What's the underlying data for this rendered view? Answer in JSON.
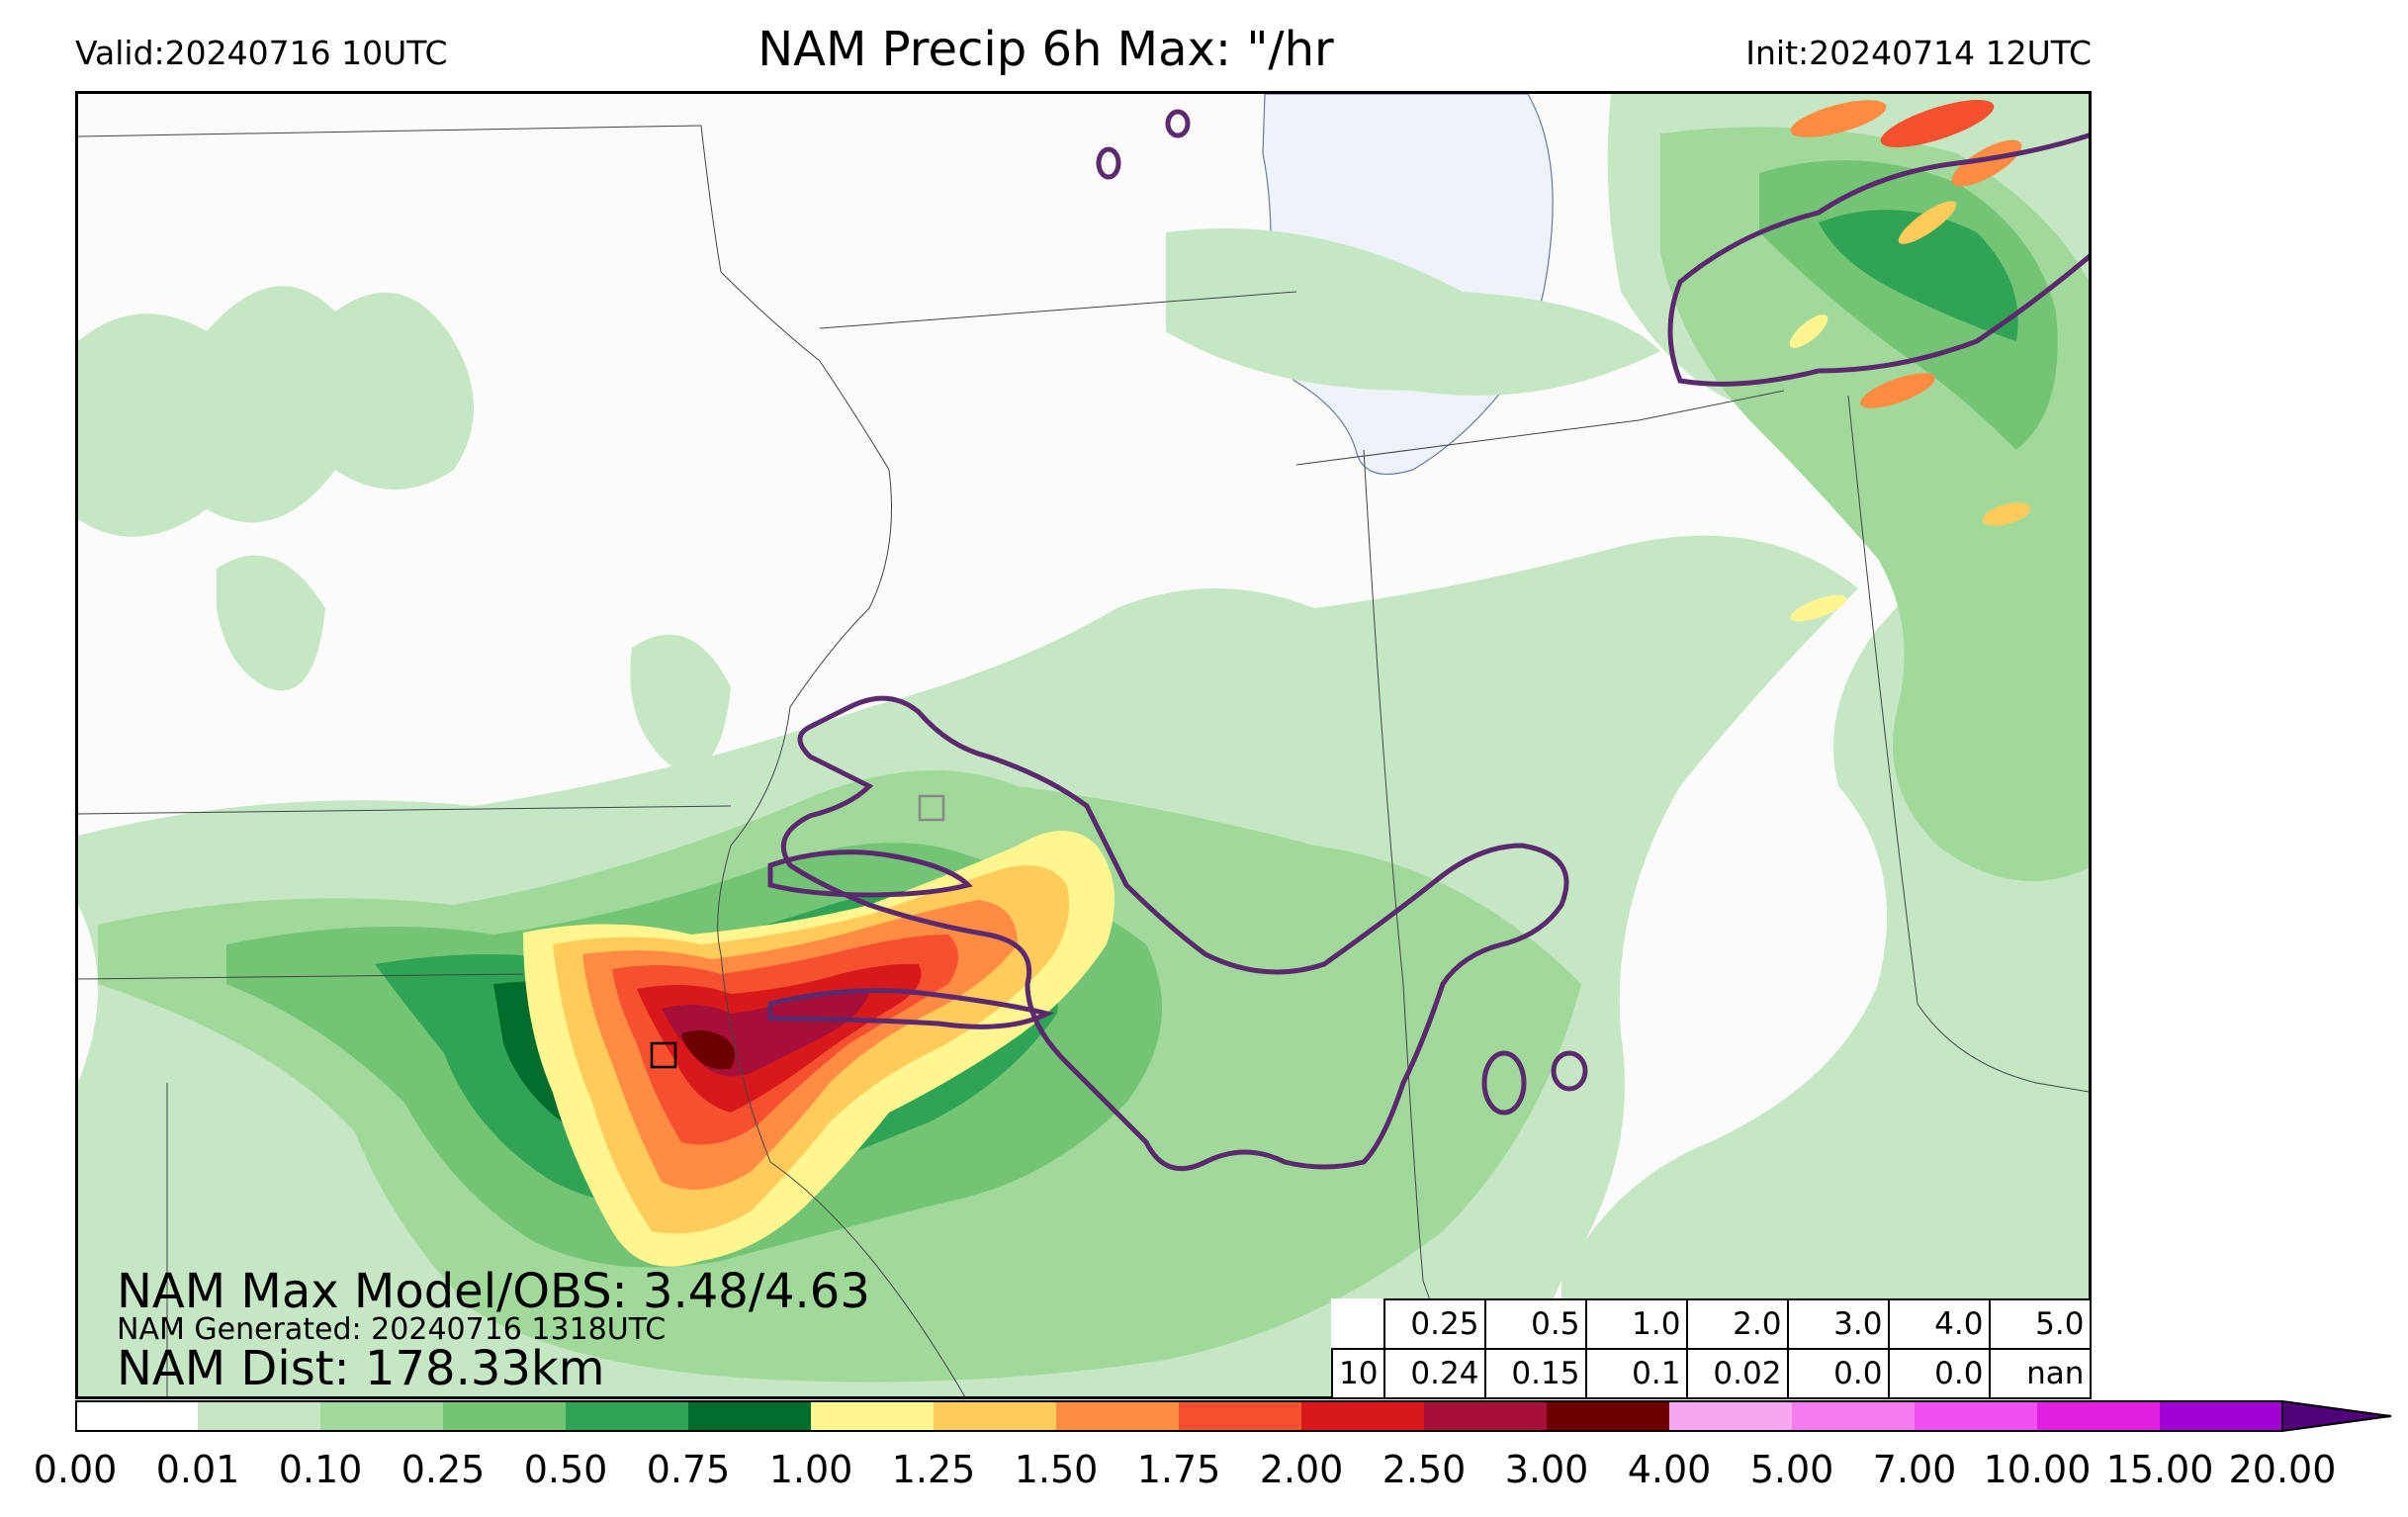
{
  "header": {
    "title": "NAM Precip 6h Max: \"/hr",
    "valid": "Valid:20240716 10UTC",
    "init": "Init:20240714 12UTC"
  },
  "stats": {
    "max_line": "NAM Max Model/OBS: 3.48/4.63",
    "generated_line": "NAM Generated: 20240716 1318UTC",
    "dist_line": "NAM Dist: 178.33km"
  },
  "threshold_table": {
    "thresholds": [
      "0.25",
      "0.5",
      "1.0",
      "2.0",
      "3.0",
      "4.0",
      "5.0"
    ],
    "row_label": "10",
    "values": [
      "0.24",
      "0.15",
      "0.1",
      "0.02",
      "0.0",
      "0.0",
      "nan"
    ]
  },
  "colorbar": {
    "ticks": [
      "0.00",
      "0.01",
      "0.10",
      "0.25",
      "0.50",
      "0.75",
      "1.00",
      "1.25",
      "1.50",
      "1.75",
      "2.00",
      "2.50",
      "3.00",
      "4.00",
      "5.00",
      "7.00",
      "10.00",
      "15.00",
      "20.00"
    ],
    "colors": [
      "#ffffff",
      "#c6e7c4",
      "#a1d99b",
      "#74c476",
      "#31a354",
      "#006d2c",
      "#fff68f",
      "#ffcc5c",
      "#ff8c42",
      "#f5502f",
      "#d7191c",
      "#a50f38",
      "#6b0000",
      "#f7a6f0",
      "#f57cf0",
      "#f050ef",
      "#e020e0",
      "#a000d0"
    ],
    "extend_color": "#500078"
  },
  "palette": {
    "water": "#eef3f9",
    "outline": "#5b2a6e",
    "background": "#fbfbfa"
  },
  "map_layers": [
    "light-rain-field",
    "moderate-rain-field",
    "heavy-rain-core",
    "observed-contour",
    "state-borders",
    "lake-michigan"
  ]
}
